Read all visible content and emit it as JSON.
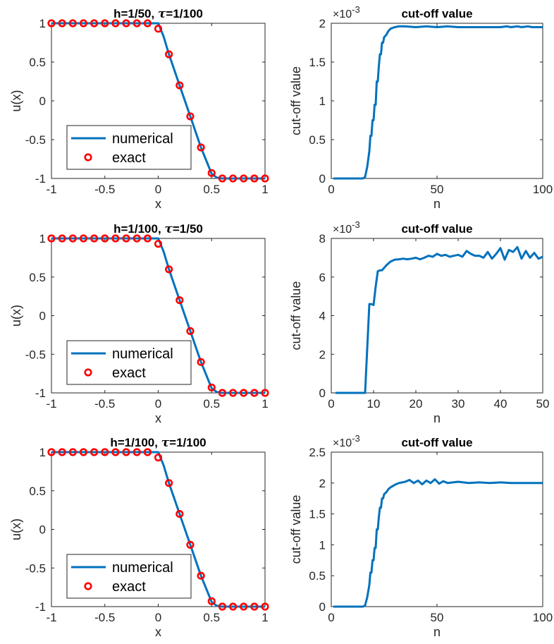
{
  "chart_data": [
    {
      "type": "line",
      "title": "h=1/50, τ=1/100",
      "xlabel": "x",
      "ylabel": "u(x)",
      "xlim": [
        -1,
        1
      ],
      "ylim": [
        -1,
        1
      ],
      "xticks": [
        -1,
        -0.5,
        0,
        0.5,
        1
      ],
      "yticks": [
        -1,
        -0.5,
        0,
        0.5,
        1
      ],
      "legend_position": "bottom-left",
      "series": [
        {
          "name": "numerical",
          "style": "line",
          "color": "#0072BD",
          "x": [
            -1,
            0,
            0.05,
            0.1,
            0.2,
            0.3,
            0.4,
            0.5,
            0.55,
            0.6,
            1
          ],
          "y": [
            1,
            1,
            0.83,
            0.6,
            0.2,
            -0.2,
            -0.6,
            -0.94,
            -0.99,
            -1,
            -1
          ]
        },
        {
          "name": "exact",
          "style": "marker",
          "color": "#FF0000",
          "x": [
            -1,
            -0.9,
            -0.8,
            -0.7,
            -0.6,
            -0.5,
            -0.4,
            -0.3,
            -0.2,
            -0.1,
            0,
            0.1,
            0.2,
            0.3,
            0.4,
            0.5,
            0.6,
            0.7,
            0.8,
            0.9,
            1
          ],
          "y": [
            1,
            1,
            1,
            1,
            1,
            1,
            1,
            1,
            1,
            1,
            0.93,
            0.6,
            0.2,
            -0.2,
            -0.6,
            -0.93,
            -1,
            -1,
            -1,
            -1,
            -1
          ]
        }
      ]
    },
    {
      "type": "line",
      "title": "cut-off value",
      "xlabel": "n",
      "ylabel": "cut-off value",
      "y_exponent": "×10-3",
      "xlim": [
        0,
        100
      ],
      "ylim": [
        0,
        2
      ],
      "xticks": [
        0,
        50,
        100
      ],
      "yticks": [
        0,
        0.5,
        1,
        1.5,
        2
      ],
      "series": [
        {
          "color": "#0072BD",
          "x": [
            1,
            15,
            16,
            17,
            18,
            18.5,
            19,
            19.5,
            20,
            20.5,
            21,
            21.5,
            22,
            22.5,
            23,
            23.5,
            24,
            24.5,
            25,
            26,
            27,
            28,
            30,
            32,
            35,
            40,
            45,
            50,
            55,
            60,
            65,
            70,
            75,
            80,
            83,
            85,
            88,
            90,
            93,
            95,
            100
          ],
          "y": [
            0,
            0,
            0.02,
            0.15,
            0.35,
            0.55,
            0.55,
            0.75,
            0.75,
            0.95,
            0.95,
            1.25,
            1.25,
            1.45,
            1.6,
            1.6,
            1.75,
            1.75,
            1.82,
            1.85,
            1.9,
            1.93,
            1.95,
            1.96,
            1.96,
            1.95,
            1.96,
            1.95,
            1.96,
            1.95,
            1.95,
            1.95,
            1.95,
            1.95,
            1.96,
            1.95,
            1.96,
            1.95,
            1.96,
            1.95,
            1.95
          ]
        }
      ]
    },
    {
      "type": "line",
      "title": "h=1/100, τ=1/50",
      "xlabel": "x",
      "ylabel": "u(x)",
      "xlim": [
        -1,
        1
      ],
      "ylim": [
        -1,
        1
      ],
      "xticks": [
        -1,
        -0.5,
        0,
        0.5,
        1
      ],
      "yticks": [
        -1,
        -0.5,
        0,
        0.5,
        1
      ],
      "legend_position": "bottom-left",
      "series": [
        {
          "name": "numerical",
          "style": "line",
          "color": "#0072BD",
          "x": [
            -1,
            0,
            0.05,
            0.1,
            0.2,
            0.3,
            0.4,
            0.5,
            0.55,
            0.6,
            1
          ],
          "y": [
            1,
            1,
            0.83,
            0.6,
            0.2,
            -0.2,
            -0.6,
            -0.94,
            -0.99,
            -1,
            -1
          ]
        },
        {
          "name": "exact",
          "style": "marker",
          "color": "#FF0000",
          "x": [
            -1,
            -0.9,
            -0.8,
            -0.7,
            -0.6,
            -0.5,
            -0.4,
            -0.3,
            -0.2,
            -0.1,
            0,
            0.1,
            0.2,
            0.3,
            0.4,
            0.5,
            0.6,
            0.7,
            0.8,
            0.9,
            1
          ],
          "y": [
            1,
            1,
            1,
            1,
            1,
            1,
            1,
            1,
            1,
            1,
            0.93,
            0.6,
            0.2,
            -0.2,
            -0.6,
            -0.93,
            -1,
            -1,
            -1,
            -1,
            -1
          ]
        }
      ]
    },
    {
      "type": "line",
      "title": "cut-off value",
      "xlabel": "n",
      "ylabel": "cut-off value",
      "y_exponent": "×10-3",
      "xlim": [
        0,
        50
      ],
      "ylim": [
        0,
        8
      ],
      "xticks": [
        0,
        10,
        20,
        30,
        40,
        50
      ],
      "yticks": [
        0,
        2,
        4,
        6,
        8
      ],
      "series": [
        {
          "color": "#0072BD",
          "x": [
            1,
            8,
            8.5,
            9,
            9.5,
            10,
            10.5,
            11,
            11.5,
            12,
            13,
            14,
            15,
            16,
            17,
            18,
            19,
            20,
            21,
            22,
            23,
            24,
            25,
            26,
            27,
            28,
            29,
            30,
            31,
            32,
            33,
            34,
            35,
            36,
            37,
            38,
            39,
            40,
            41,
            42,
            43,
            44,
            45,
            46,
            47,
            48,
            49,
            50
          ],
          "y": [
            0,
            0,
            2.3,
            4.6,
            4.6,
            4.55,
            5.5,
            6.3,
            6.35,
            6.35,
            6.6,
            6.8,
            6.9,
            6.92,
            6.95,
            6.92,
            6.95,
            7.0,
            6.92,
            7.0,
            7.1,
            7.05,
            7.2,
            7.1,
            7.15,
            7.05,
            7.1,
            7.15,
            7.05,
            7.35,
            7.2,
            7.1,
            7.1,
            7.0,
            7.3,
            6.95,
            7.2,
            7.5,
            6.9,
            7.4,
            7.3,
            7.55,
            6.95,
            7.35,
            7.0,
            7.25,
            6.95,
            7.05
          ]
        }
      ]
    },
    {
      "type": "line",
      "title": "h=1/100, τ=1/100",
      "xlabel": "x",
      "ylabel": "u(x)",
      "xlim": [
        -1,
        1
      ],
      "ylim": [
        -1,
        1
      ],
      "xticks": [
        -1,
        -0.5,
        0,
        0.5,
        1
      ],
      "yticks": [
        -1,
        -0.5,
        0,
        0.5,
        1
      ],
      "legend_position": "bottom-left",
      "series": [
        {
          "name": "numerical",
          "style": "line",
          "color": "#0072BD",
          "x": [
            -1,
            0,
            0.05,
            0.1,
            0.2,
            0.3,
            0.4,
            0.5,
            0.55,
            0.6,
            1
          ],
          "y": [
            1,
            1,
            0.83,
            0.6,
            0.2,
            -0.2,
            -0.6,
            -0.94,
            -0.99,
            -1,
            -1
          ]
        },
        {
          "name": "exact",
          "style": "marker",
          "color": "#FF0000",
          "x": [
            -1,
            -0.9,
            -0.8,
            -0.7,
            -0.6,
            -0.5,
            -0.4,
            -0.3,
            -0.2,
            -0.1,
            0,
            0.1,
            0.2,
            0.3,
            0.4,
            0.5,
            0.6,
            0.7,
            0.8,
            0.9,
            1
          ],
          "y": [
            1,
            1,
            1,
            1,
            1,
            1,
            1,
            1,
            1,
            1,
            0.93,
            0.6,
            0.2,
            -0.2,
            -0.6,
            -0.93,
            -1,
            -1,
            -1,
            -1,
            -1
          ]
        }
      ]
    },
    {
      "type": "line",
      "title": "cut-off value",
      "xlabel": "n",
      "ylabel": "cut-off value",
      "y_exponent": "×10-3",
      "xlim": [
        0,
        100
      ],
      "ylim": [
        0,
        2.5
      ],
      "xticks": [
        0,
        50,
        100
      ],
      "yticks": [
        0,
        0.5,
        1,
        1.5,
        2,
        2.5
      ],
      "series": [
        {
          "color": "#0072BD",
          "x": [
            1,
            15,
            16,
            17,
            18,
            18.5,
            19,
            19.5,
            20,
            20.5,
            21,
            21.5,
            22,
            22.5,
            23,
            23.5,
            24,
            24.5,
            25,
            26,
            27,
            28,
            30,
            32,
            35,
            37,
            39,
            41,
            43,
            45,
            47,
            49,
            51,
            53,
            55,
            60,
            65,
            70,
            75,
            80,
            85,
            90,
            95,
            100
          ],
          "y": [
            0,
            0,
            0.02,
            0.15,
            0.35,
            0.55,
            0.55,
            0.75,
            0.75,
            0.95,
            0.95,
            1.25,
            1.25,
            1.45,
            1.6,
            1.6,
            1.75,
            1.75,
            1.82,
            1.85,
            1.9,
            1.93,
            1.97,
            2.0,
            2.02,
            2.05,
            2.0,
            2.04,
            1.98,
            2.04,
            2.0,
            2.06,
            1.99,
            2.03,
            2.0,
            2.02,
            2.0,
            2.01,
            2.0,
            2.01,
            2.0,
            2.0,
            2.0,
            2.0
          ]
        }
      ]
    }
  ]
}
